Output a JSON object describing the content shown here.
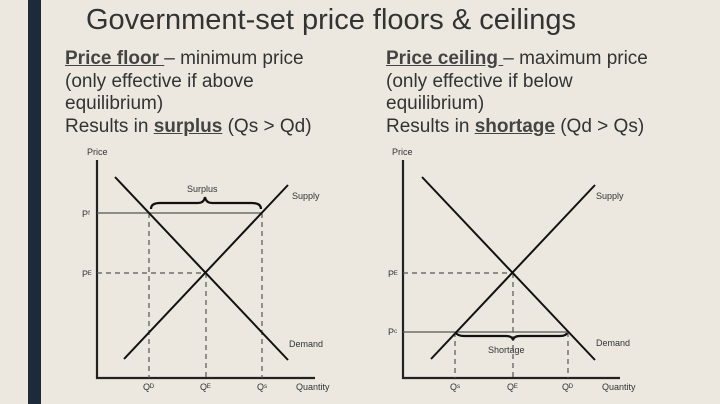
{
  "slide": {
    "title": "Government-set price floors & ceilings",
    "floor": {
      "term": "Price floor ",
      "definition": "– minimum price",
      "line2": "(only effective if above",
      "line3": "equilibrium)",
      "result_prefix": "Results in ",
      "result_term": "surplus",
      "result_suffix": " (Qs > Qd)"
    },
    "ceiling": {
      "term": "Price ceiling ",
      "definition": "– maximum price",
      "line2": "(only effective if below",
      "line3": "equilibrium)",
      "result_prefix": "Results in ",
      "result_term": "shortage",
      "result_suffix": " (Qd > Qs)"
    }
  },
  "diagrams": {
    "floor": {
      "y_label": "Price",
      "x_label": "Quantity",
      "supply": "Supply",
      "demand": "Demand",
      "gap_label": "Surplus",
      "p_set": "Pᶠ",
      "p_eq": "Pᴱ",
      "q_left": "Qᴰ",
      "q_mid": "Qᴱ",
      "q_right": "Qˢ"
    },
    "ceiling": {
      "y_label": "Price",
      "x_label": "Quantity",
      "supply": "Supply",
      "demand": "Demand",
      "gap_label": "Shortage",
      "p_set": "Pᶜ",
      "p_eq": "Pᴱ",
      "q_left": "Qˢ",
      "q_mid": "Qᴱ",
      "q_right": "Qᴰ"
    }
  },
  "colors": {
    "background": "#ece8df",
    "accent_bar": "#1c2b3a"
  }
}
